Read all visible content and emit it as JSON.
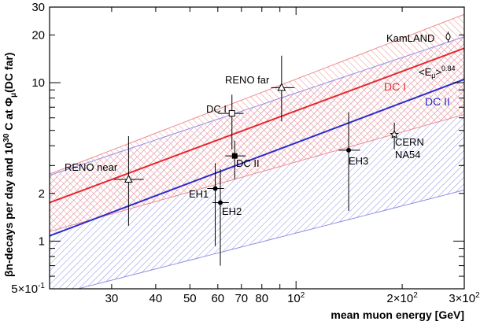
{
  "chart_data": {
    "type": "scatter",
    "title": "",
    "xlabel": "mean muon energy [GeV]",
    "ylabel": "βn-decays per day and 10³⁰ C at Φμ(DC far)",
    "xscale": "log",
    "yscale": "log",
    "xlim": [
      20,
      300
    ],
    "ylim": [
      0.5,
      30
    ],
    "grid": false,
    "x_ticks": [
      {
        "v": 30,
        "label": "30"
      },
      {
        "v": 40,
        "label": "40"
      },
      {
        "v": 50,
        "label": "50"
      },
      {
        "v": 60,
        "label": "60"
      },
      {
        "v": 70,
        "label": "70"
      },
      {
        "v": 80,
        "label": "80"
      },
      {
        "v": 100,
        "label": "10²"
      },
      {
        "v": 200,
        "label": "2×10²"
      },
      {
        "v": 300,
        "label": "3×10²"
      }
    ],
    "y_ticks": [
      {
        "v": 0.5,
        "label": "5×10⁻¹"
      },
      {
        "v": 1,
        "label": "1"
      },
      {
        "v": 2,
        "label": "2"
      },
      {
        "v": 10,
        "label": "10"
      },
      {
        "v": 20,
        "label": "20"
      },
      {
        "v": 30,
        "label": "30"
      }
    ],
    "bands": [
      {
        "name": "DC I",
        "color": "#e8282d",
        "lower": [
          [
            20,
            2.5
          ],
          [
            300,
            27
          ]
        ],
        "center": [
          [
            20,
            1.75
          ],
          [
            300,
            16.5
          ]
        ],
        "upper_visual_note": ""
      },
      {
        "name": "DC II",
        "color": "#2c2ccc",
        "lower": [
          [
            20,
            0.45
          ],
          [
            300,
            2.1
          ]
        ],
        "center": [
          [
            20,
            1.08
          ],
          [
            300,
            10.5
          ]
        ],
        "upper": [
          [
            20,
            2.6
          ],
          [
            300,
            19.5
          ]
        ]
      }
    ],
    "band_annotation": "<Eμ>^0.84",
    "points": [
      {
        "label": "RENO near",
        "x": 33.5,
        "y": 2.45,
        "yerr_low": 1.25,
        "yerr_high": 4.6,
        "xerr": [
          30.5,
          37
        ],
        "marker": "triangle-open"
      },
      {
        "label": "RENO far",
        "x": 91,
        "y": 9.3,
        "yerr_low": 5.7,
        "yerr_high": 14.8,
        "xerr": [
          85,
          99
        ],
        "marker": "triangle-open"
      },
      {
        "label": "DC I",
        "x": 65.8,
        "y": 6.4,
        "yerr_low": 3.8,
        "yerr_high": 8.4,
        "xerr": [
          60,
          71
        ],
        "marker": "square-open"
      },
      {
        "label": "DC II",
        "x": 67,
        "y": 3.45,
        "yerr_low": 2.45,
        "yerr_high": 4.3,
        "xerr": [
          63,
          72
        ],
        "marker": "square-filled"
      },
      {
        "label": "EH1",
        "x": 59,
        "y": 2.15,
        "yerr_low": 0.93,
        "yerr_high": 3.1,
        "xerr": [
          56,
          62.5
        ],
        "marker": "circle-filled"
      },
      {
        "label": "EH2",
        "x": 61,
        "y": 1.75,
        "yerr_low": 0.7,
        "yerr_high": 2.85,
        "xerr": [
          58,
          64.5
        ],
        "marker": "circle-filled"
      },
      {
        "label": "EH3",
        "x": 141,
        "y": 3.75,
        "yerr_low": 1.55,
        "yerr_high": 6.5,
        "xerr": [
          132,
          152
        ],
        "marker": "circle-filled"
      },
      {
        "label": "CERN NA54",
        "x": 190,
        "y": 4.7,
        "yerr_low": 3.8,
        "yerr_high": 5.6,
        "xerr": [
          190,
          190
        ],
        "marker": "star"
      },
      {
        "label": "KamLAND",
        "x": 270,
        "y": 19.5,
        "yerr_low": 18,
        "yerr_high": 21,
        "xerr": [
          270,
          270
        ],
        "marker": "diamond-open"
      }
    ],
    "annotations": [
      "RENO near",
      "RENO far",
      "DC I",
      "DC II",
      "EH1",
      "EH2",
      "EH3",
      "CERN",
      "NA54",
      "KamLAND"
    ]
  }
}
